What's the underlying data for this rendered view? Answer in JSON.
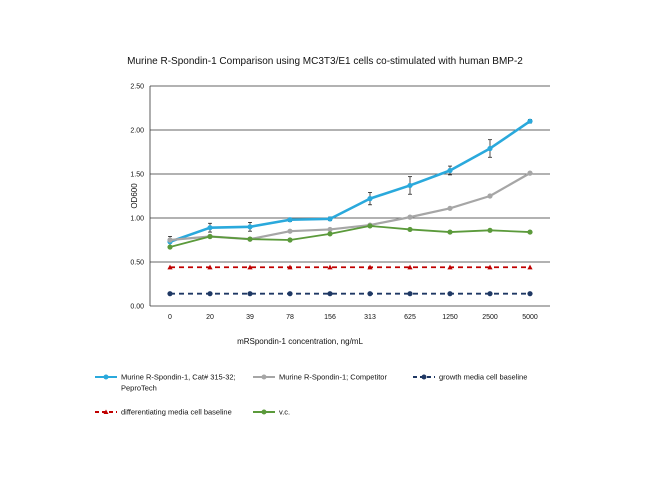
{
  "chart_data": {
    "type": "line",
    "title": "Murine R-Spondin-1 Comparison using MC3T3/E1 cells co-stimulated with human BMP-2",
    "xlabel": "mRSpondin-1 concentration, ng/mL",
    "ylabel": "OD600",
    "ylim": [
      0,
      2.5
    ],
    "yticks": [
      "0.00",
      "0.50",
      "1.00",
      "1.50",
      "2.00",
      "2.50"
    ],
    "categories": [
      "0",
      "20",
      "39",
      "78",
      "156",
      "313",
      "625",
      "1250",
      "2500",
      "5000"
    ],
    "grid": "horizontal",
    "legend_position": "bottom",
    "series": [
      {
        "name": "Murine R-Spondin-1, Cat# 315-32; PeproTech",
        "legend_lines": [
          "Murine R-Spondin-1, Cat# 315-32;",
          "PeproTech"
        ],
        "color": "#2aa9dc",
        "dash": "solid",
        "marker": "circle",
        "values": [
          0.73,
          0.89,
          0.9,
          0.98,
          0.99,
          1.22,
          1.37,
          1.54,
          1.79,
          2.1
        ],
        "errors": [
          0.06,
          0.05,
          0.05,
          0.02,
          0.02,
          0.07,
          0.1,
          0.05,
          0.1,
          0.02
        ]
      },
      {
        "name": "Murine R-Spondin-1; Competitor",
        "legend_lines": [
          "Murine R-Spondin-1; Competitor"
        ],
        "color": "#a6a6a6",
        "dash": "solid",
        "marker": "circle",
        "values": [
          0.75,
          0.79,
          0.76,
          0.85,
          0.87,
          0.92,
          1.01,
          1.11,
          1.25,
          1.51
        ],
        "errors": []
      },
      {
        "name": "growth media cell baseline",
        "legend_lines": [
          "growth media cell baseline"
        ],
        "color": "#1f3864",
        "dash": "dashed",
        "marker": "circle",
        "values": [
          0.14,
          0.14,
          0.14,
          0.14,
          0.14,
          0.14,
          0.14,
          0.14,
          0.14,
          0.14
        ],
        "errors": []
      },
      {
        "name": "differentiating media cell baseline",
        "legend_lines": [
          "differentiating media cell baseline"
        ],
        "color": "#c00000",
        "dash": "dashed",
        "marker": "triangle",
        "values": [
          0.44,
          0.44,
          0.44,
          0.44,
          0.44,
          0.44,
          0.44,
          0.44,
          0.44,
          0.44
        ],
        "errors": []
      },
      {
        "name": "v.c.",
        "legend_lines": [
          "v.c."
        ],
        "color": "#5b9a3b",
        "dash": "solid",
        "marker": "circle",
        "values": [
          0.67,
          0.79,
          0.76,
          0.75,
          0.82,
          0.91,
          0.87,
          0.84,
          0.86,
          0.84
        ],
        "errors": []
      }
    ]
  }
}
